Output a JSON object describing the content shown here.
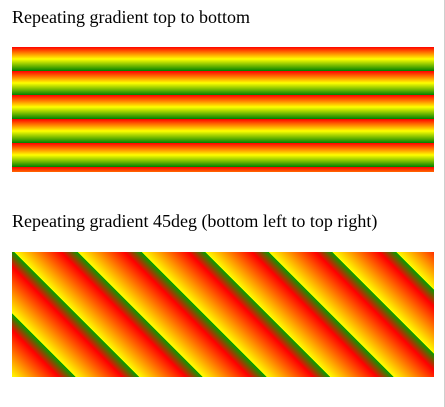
{
  "sections": [
    {
      "heading": "Repeating gradient top to bottom",
      "direction": "to bottom",
      "colors": [
        "#ff0000",
        "#ffff00",
        "#008000"
      ]
    },
    {
      "heading": "Repeating gradient 45deg (bottom left to top right)",
      "direction": "45deg",
      "colors": [
        "#ffff00",
        "#ff0000",
        "#00a000"
      ]
    }
  ]
}
